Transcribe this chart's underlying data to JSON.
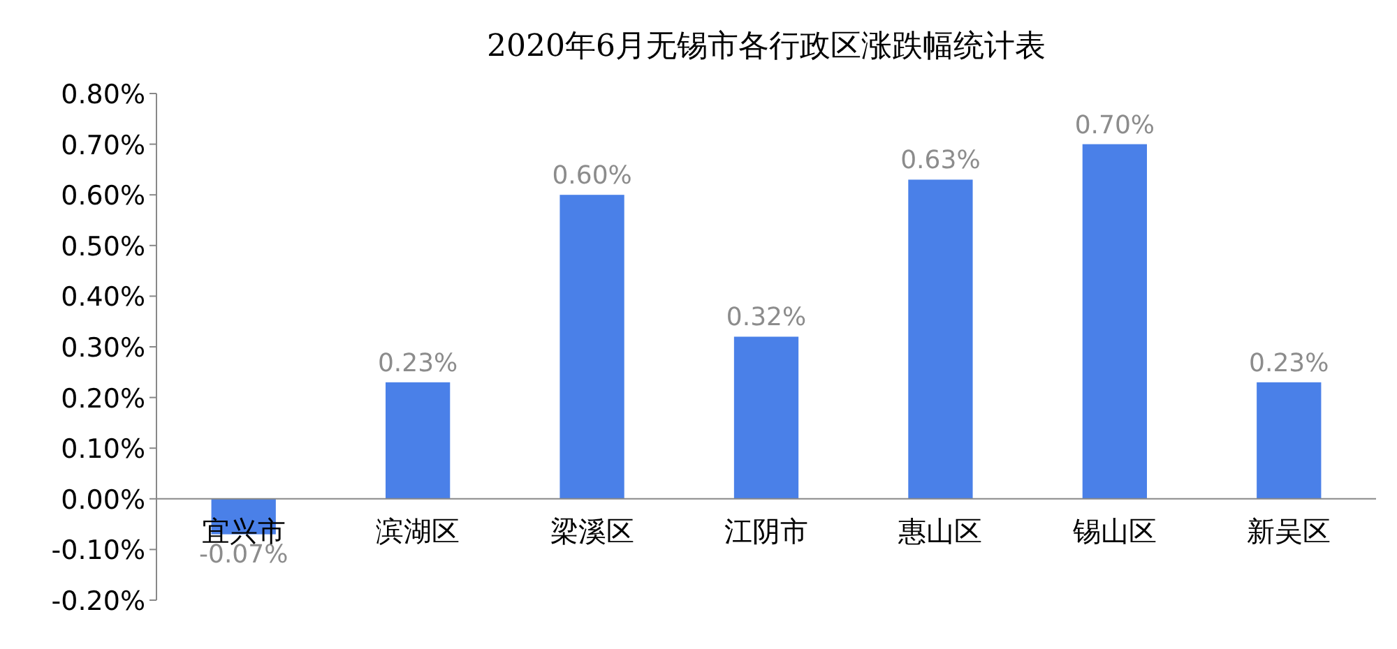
{
  "chart_data": {
    "type": "bar",
    "title": "2020年6月无锡市各行政区涨跌幅统计表",
    "categories": [
      "宜兴市",
      "滨湖区",
      "梁溪区",
      "江阴市",
      "惠山区",
      "锡山区",
      "新吴区"
    ],
    "values": [
      -0.07,
      0.23,
      0.6,
      0.32,
      0.63,
      0.7,
      0.23
    ],
    "value_labels": [
      "-0.07%",
      "0.23%",
      "0.60%",
      "0.32%",
      "0.63%",
      "0.70%",
      "0.23%"
    ],
    "color": "#4a80e8",
    "ylim": [
      -0.2,
      0.8
    ],
    "yticks": [
      {
        "value": -0.2,
        "label": "-0.20%"
      },
      {
        "value": -0.1,
        "label": "-0.10%"
      },
      {
        "value": 0,
        "label": "0.00%"
      },
      {
        "value": 0.1,
        "label": "0.10%"
      },
      {
        "value": 0.2,
        "label": "0.20%"
      },
      {
        "value": 0.3,
        "label": "0.30%"
      },
      {
        "value": 0.4,
        "label": "0.40%"
      },
      {
        "value": 0.5,
        "label": "0.50%"
      },
      {
        "value": 0.6,
        "label": "0.60%"
      },
      {
        "value": 0.7,
        "label": "0.70%"
      },
      {
        "value": 0.8,
        "label": "0.80%"
      }
    ],
    "grid": false
  }
}
